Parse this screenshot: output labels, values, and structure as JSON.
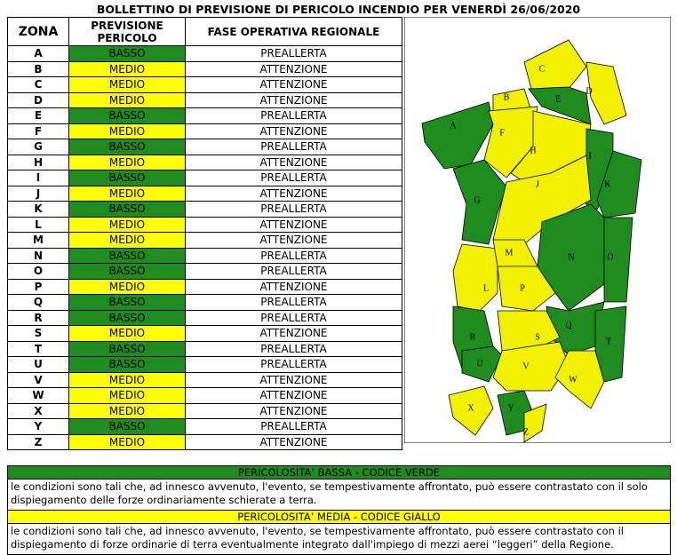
{
  "title": "BOLLETTINO DI PREVISIONE DI PERICOLO INCENDIO PER VENERDÌ 26/06/2020",
  "table": {
    "headers": [
      "ZONA",
      "PREVISIONE PERICOLO",
      "FASE OPERATIVA REGIONALE"
    ],
    "rows": [
      {
        "zona": "A",
        "previsione": "BASSO",
        "fase": "PREALLERTA",
        "color": "#1e8c1e"
      },
      {
        "zona": "B",
        "previsione": "MEDIO",
        "fase": "ATTENZIONE",
        "color": "#ffff00"
      },
      {
        "zona": "C",
        "previsione": "MEDIO",
        "fase": "ATTENZIONE",
        "color": "#ffff00"
      },
      {
        "zona": "D",
        "previsione": "MEDIO",
        "fase": "ATTENZIONE",
        "color": "#ffff00"
      },
      {
        "zona": "E",
        "previsione": "BASSO",
        "fase": "PREALLERTA",
        "color": "#1e8c1e"
      },
      {
        "zona": "F",
        "previsione": "MEDIO",
        "fase": "ATTENZIONE",
        "color": "#ffff00"
      },
      {
        "zona": "G",
        "previsione": "BASSO",
        "fase": "PREALLERTA",
        "color": "#1e8c1e"
      },
      {
        "zona": "H",
        "previsione": "MEDIO",
        "fase": "ATTENZIONE",
        "color": "#ffff00"
      },
      {
        "zona": "I",
        "previsione": "BASSO",
        "fase": "PREALLERTA",
        "color": "#1e8c1e"
      },
      {
        "zona": "J",
        "previsione": "MEDIO",
        "fase": "ATTENZIONE",
        "color": "#ffff00"
      },
      {
        "zona": "K",
        "previsione": "BASSO",
        "fase": "PREALLERTA",
        "color": "#1e8c1e"
      },
      {
        "zona": "L",
        "previsione": "MEDIO",
        "fase": "ATTENZIONE",
        "color": "#ffff00"
      },
      {
        "zona": "M",
        "previsione": "MEDIO",
        "fase": "ATTENZIONE",
        "color": "#ffff00"
      },
      {
        "zona": "N",
        "previsione": "BASSO",
        "fase": "PREALLERTA",
        "color": "#1e8c1e"
      },
      {
        "zona": "O",
        "previsione": "BASSO",
        "fase": "PREALLERTA",
        "color": "#1e8c1e"
      },
      {
        "zona": "P",
        "previsione": "MEDIO",
        "fase": "ATTENZIONE",
        "color": "#ffff00"
      },
      {
        "zona": "Q",
        "previsione": "BASSO",
        "fase": "PREALLERTA",
        "color": "#1e8c1e"
      },
      {
        "zona": "R",
        "previsione": "BASSO",
        "fase": "PREALLERTA",
        "color": "#1e8c1e"
      },
      {
        "zona": "S",
        "previsione": "MEDIO",
        "fase": "ATTENZIONE",
        "color": "#ffff00"
      },
      {
        "zona": "T",
        "previsione": "BASSO",
        "fase": "PREALLERTA",
        "color": "#1e8c1e"
      },
      {
        "zona": "U",
        "previsione": "BASSO",
        "fase": "PREALLERTA",
        "color": "#1e8c1e"
      },
      {
        "zona": "V",
        "previsione": "MEDIO",
        "fase": "ATTENZIONE",
        "color": "#ffff00"
      },
      {
        "zona": "W",
        "previsione": "MEDIO",
        "fase": "ATTENZIONE",
        "color": "#ffff00"
      },
      {
        "zona": "X",
        "previsione": "MEDIO",
        "fase": "ATTENZIONE",
        "color": "#ffff00"
      },
      {
        "zona": "Y",
        "previsione": "BASSO",
        "fase": "PREALLERTA",
        "color": "#1e8c1e"
      },
      {
        "zona": "Z",
        "previsione": "MEDIO",
        "fase": "ATTENZIONE",
        "color": "#ffff00"
      }
    ]
  },
  "legend": [
    {
      "title": "PERICOLOSITA’ BASSA - CODICE VERDE",
      "color": "#1e8c1e",
      "text": "le condizioni sono tali che, ad innesco avvenuto, l'evento, se tempestivamente affrontato, può essere contrastato con il solo dispiegamento delle forze ordinariamente schierate a terra."
    },
    {
      "title": "PERICOLOSITA’ MEDIA - CODICE GIALLO",
      "color": "#ffff00",
      "text": "le condizioni sono tali che, ad innesco avvenuto, l'evento, se tempestivamente affrontato, può essere contrastato con il dispiegamento di forze ordinarie di terra eventualmente integrato dall'impiego di mezzi aerei “leggeri” della Regione."
    }
  ]
}
